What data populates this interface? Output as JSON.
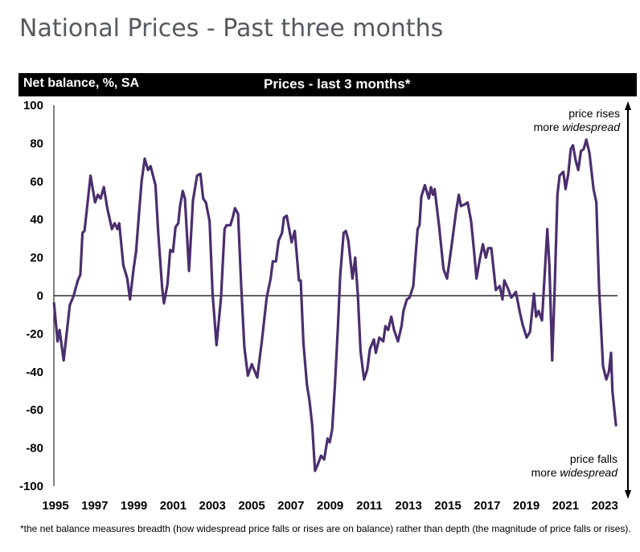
{
  "page": {
    "title": "National Prices - Past three months"
  },
  "header": {
    "left_label": "Net balance, %, SA",
    "center_label": "Prices - last 3 months*"
  },
  "footnote": "*the net balance measures breadth (how widespread price falls or rises are on balance)  rather than depth (the magnitude of price falls or rises).",
  "colors": {
    "line": "#4b2e6e",
    "header_bg": "#000000",
    "header_text": "#ffffff",
    "title_text": "#555a60"
  },
  "chart_data": {
    "type": "line",
    "title": "Prices - last 3 months*",
    "ylabel": "Net balance, %, SA",
    "xlabel": "",
    "xlim": [
      1995,
      2024.2
    ],
    "ylim": [
      -100,
      100
    ],
    "yticks": [
      100,
      80,
      60,
      40,
      20,
      0,
      -20,
      -40,
      -60,
      -80,
      -100
    ],
    "xticks": [
      1995,
      1997,
      1999,
      2001,
      2003,
      2005,
      2007,
      2009,
      2011,
      2013,
      2015,
      2017,
      2019,
      2021,
      2023
    ],
    "zero_line": true,
    "grid": false,
    "annotations": {
      "top": {
        "line1": "price rises",
        "line2_plain": "more ",
        "line2_italic": "widespread"
      },
      "bottom": {
        "line1": "price falls",
        "line2_plain": "more ",
        "line2_italic": "widespread"
      }
    },
    "series": [
      {
        "name": "Prices - last 3 months",
        "points": [
          [
            1995.01,
            -4
          ],
          [
            1995.19,
            -24
          ],
          [
            1995.29,
            -18
          ],
          [
            1995.5,
            -34
          ],
          [
            1995.81,
            -5
          ],
          [
            1996.01,
            0
          ],
          [
            1996.22,
            8
          ],
          [
            1996.35,
            11
          ],
          [
            1996.46,
            33
          ],
          [
            1996.56,
            34
          ],
          [
            1996.87,
            63
          ],
          [
            1997.1,
            49
          ],
          [
            1997.24,
            53
          ],
          [
            1997.38,
            51
          ],
          [
            1997.55,
            57
          ],
          [
            1997.72,
            46
          ],
          [
            1997.96,
            35
          ],
          [
            1998.1,
            38
          ],
          [
            1998.24,
            35
          ],
          [
            1998.33,
            38
          ],
          [
            1998.54,
            16
          ],
          [
            1998.74,
            9
          ],
          [
            1998.88,
            -2
          ],
          [
            1999.06,
            14
          ],
          [
            1999.19,
            23
          ],
          [
            1999.33,
            42
          ],
          [
            1999.47,
            60
          ],
          [
            1999.63,
            72
          ],
          [
            1999.8,
            66
          ],
          [
            1999.93,
            68
          ],
          [
            2000.18,
            58
          ],
          [
            2000.32,
            33
          ],
          [
            2000.52,
            4
          ],
          [
            2000.61,
            -4
          ],
          [
            2000.79,
            6
          ],
          [
            2000.93,
            24
          ],
          [
            2001.07,
            23
          ],
          [
            2001.2,
            36
          ],
          [
            2001.34,
            38
          ],
          [
            2001.43,
            47
          ],
          [
            2001.57,
            55
          ],
          [
            2001.68,
            51
          ],
          [
            2001.89,
            13
          ],
          [
            2002.09,
            50
          ],
          [
            2002.3,
            63
          ],
          [
            2002.47,
            64
          ],
          [
            2002.61,
            51
          ],
          [
            2002.75,
            49
          ],
          [
            2002.94,
            39
          ],
          [
            2003.09,
            1
          ],
          [
            2003.29,
            -26
          ],
          [
            2003.52,
            -1
          ],
          [
            2003.7,
            35
          ],
          [
            2003.8,
            37
          ],
          [
            2004.0,
            37
          ],
          [
            2004.14,
            42
          ],
          [
            2004.23,
            46
          ],
          [
            2004.39,
            43
          ],
          [
            2004.55,
            5
          ],
          [
            2004.71,
            -27
          ],
          [
            2004.89,
            -42
          ],
          [
            2005.09,
            -36
          ],
          [
            2005.37,
            -43
          ],
          [
            2005.61,
            -23
          ],
          [
            2005.85,
            -1
          ],
          [
            2006.05,
            9
          ],
          [
            2006.16,
            18
          ],
          [
            2006.32,
            18
          ],
          [
            2006.46,
            29
          ],
          [
            2006.63,
            33
          ],
          [
            2006.73,
            41
          ],
          [
            2006.87,
            42
          ],
          [
            2007.12,
            28
          ],
          [
            2007.28,
            34
          ],
          [
            2007.49,
            8
          ],
          [
            2007.58,
            8
          ],
          [
            2007.72,
            -25
          ],
          [
            2007.9,
            -47
          ],
          [
            2008.03,
            -55
          ],
          [
            2008.17,
            -68
          ],
          [
            2008.31,
            -92
          ],
          [
            2008.44,
            -89
          ],
          [
            2008.62,
            -84
          ],
          [
            2008.78,
            -86
          ],
          [
            2008.95,
            -75
          ],
          [
            2009.06,
            -77
          ],
          [
            2009.19,
            -70
          ],
          [
            2009.33,
            -46
          ],
          [
            2009.47,
            -18
          ],
          [
            2009.6,
            11
          ],
          [
            2009.77,
            33
          ],
          [
            2009.88,
            34
          ],
          [
            2010.01,
            29
          ],
          [
            2010.22,
            9
          ],
          [
            2010.36,
            20
          ],
          [
            2010.49,
            1
          ],
          [
            2010.63,
            -29
          ],
          [
            2010.81,
            -44
          ],
          [
            2010.97,
            -39
          ],
          [
            2011.11,
            -28
          ],
          [
            2011.31,
            -23
          ],
          [
            2011.41,
            -30
          ],
          [
            2011.59,
            -22
          ],
          [
            2011.79,
            -24
          ],
          [
            2011.9,
            -16
          ],
          [
            2012.04,
            -18
          ],
          [
            2012.2,
            -11
          ],
          [
            2012.34,
            -18
          ],
          [
            2012.54,
            -24
          ],
          [
            2012.72,
            -16
          ],
          [
            2012.82,
            -8
          ],
          [
            2012.99,
            -2
          ],
          [
            2013.13,
            -1
          ],
          [
            2013.32,
            5
          ],
          [
            2013.43,
            20
          ],
          [
            2013.54,
            35
          ],
          [
            2013.64,
            37
          ],
          [
            2013.73,
            52
          ],
          [
            2013.91,
            58
          ],
          [
            2014.11,
            51
          ],
          [
            2014.22,
            57
          ],
          [
            2014.32,
            53
          ],
          [
            2014.41,
            56
          ],
          [
            2014.63,
            37
          ],
          [
            2014.86,
            14
          ],
          [
            2015.04,
            9
          ],
          [
            2015.27,
            26
          ],
          [
            2015.5,
            44
          ],
          [
            2015.64,
            53
          ],
          [
            2015.75,
            47
          ],
          [
            2015.96,
            48
          ],
          [
            2016.09,
            49
          ],
          [
            2016.27,
            39
          ],
          [
            2016.43,
            22
          ],
          [
            2016.54,
            9
          ],
          [
            2016.71,
            19
          ],
          [
            2016.87,
            27
          ],
          [
            2017.02,
            20
          ],
          [
            2017.14,
            25
          ],
          [
            2017.3,
            25
          ],
          [
            2017.53,
            3
          ],
          [
            2017.73,
            5
          ],
          [
            2017.87,
            -2
          ],
          [
            2017.96,
            8
          ],
          [
            2018.14,
            4
          ],
          [
            2018.32,
            -1
          ],
          [
            2018.55,
            2
          ],
          [
            2018.76,
            -9
          ],
          [
            2018.89,
            -15
          ],
          [
            2019.1,
            -22
          ],
          [
            2019.27,
            -19
          ],
          [
            2019.47,
            1
          ],
          [
            2019.58,
            -11
          ],
          [
            2019.71,
            -8
          ],
          [
            2019.88,
            -13
          ],
          [
            2020.15,
            35
          ],
          [
            2020.26,
            16
          ],
          [
            2020.4,
            -34
          ],
          [
            2020.53,
            4
          ],
          [
            2020.67,
            53
          ],
          [
            2020.78,
            63
          ],
          [
            2020.87,
            64
          ],
          [
            2020.97,
            65
          ],
          [
            2021.08,
            56
          ],
          [
            2021.22,
            64
          ],
          [
            2021.35,
            77
          ],
          [
            2021.46,
            79
          ],
          [
            2021.6,
            71
          ],
          [
            2021.73,
            66
          ],
          [
            2021.87,
            76
          ],
          [
            2022.01,
            77
          ],
          [
            2022.14,
            82
          ],
          [
            2022.3,
            75
          ],
          [
            2022.51,
            56
          ],
          [
            2022.65,
            49
          ],
          [
            2022.79,
            4
          ],
          [
            2022.99,
            -37
          ],
          [
            2023.16,
            -44
          ],
          [
            2023.29,
            -40
          ],
          [
            2023.4,
            -30
          ],
          [
            2023.47,
            -50
          ],
          [
            2023.65,
            -68
          ]
        ]
      }
    ]
  }
}
